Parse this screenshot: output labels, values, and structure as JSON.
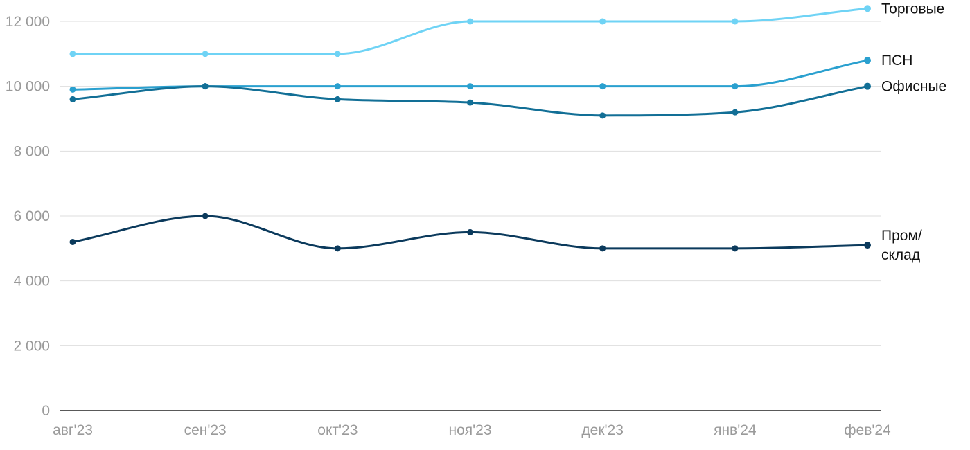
{
  "chart_data": {
    "type": "line",
    "categories": [
      "авг'23",
      "сен'23",
      "окт'23",
      "ноя'23",
      "дек'23",
      "янв'24",
      "фев'24"
    ],
    "ylim": [
      0,
      12400
    ],
    "yticks": [
      0,
      2000,
      4000,
      6000,
      8000,
      10000,
      12000
    ],
    "ytick_labels": [
      "0",
      "2 000",
      "4 000",
      "6 000",
      "8 000",
      "10 000",
      "12 000"
    ],
    "grid": true,
    "series": [
      {
        "name": "Торговые",
        "label_lines": [
          "Торговые"
        ],
        "color": "#6fd3f5",
        "values": [
          11000,
          11000,
          11000,
          12000,
          12000,
          12000,
          12400
        ]
      },
      {
        "name": "ПСН",
        "label_lines": [
          "ПСН"
        ],
        "color": "#2aa0cf",
        "values": [
          9900,
          10000,
          10000,
          10000,
          10000,
          10000,
          10800
        ]
      },
      {
        "name": "Офисные",
        "label_lines": [
          "Офисные"
        ],
        "color": "#126f96",
        "values": [
          9600,
          10000,
          9600,
          9500,
          9100,
          9200,
          10000
        ]
      },
      {
        "name": "Пром/склад",
        "label_lines": [
          "Пром/",
          "склад"
        ],
        "color": "#0b3a5c",
        "values": [
          5200,
          6000,
          5000,
          5500,
          5000,
          5000,
          5100
        ]
      }
    ]
  }
}
